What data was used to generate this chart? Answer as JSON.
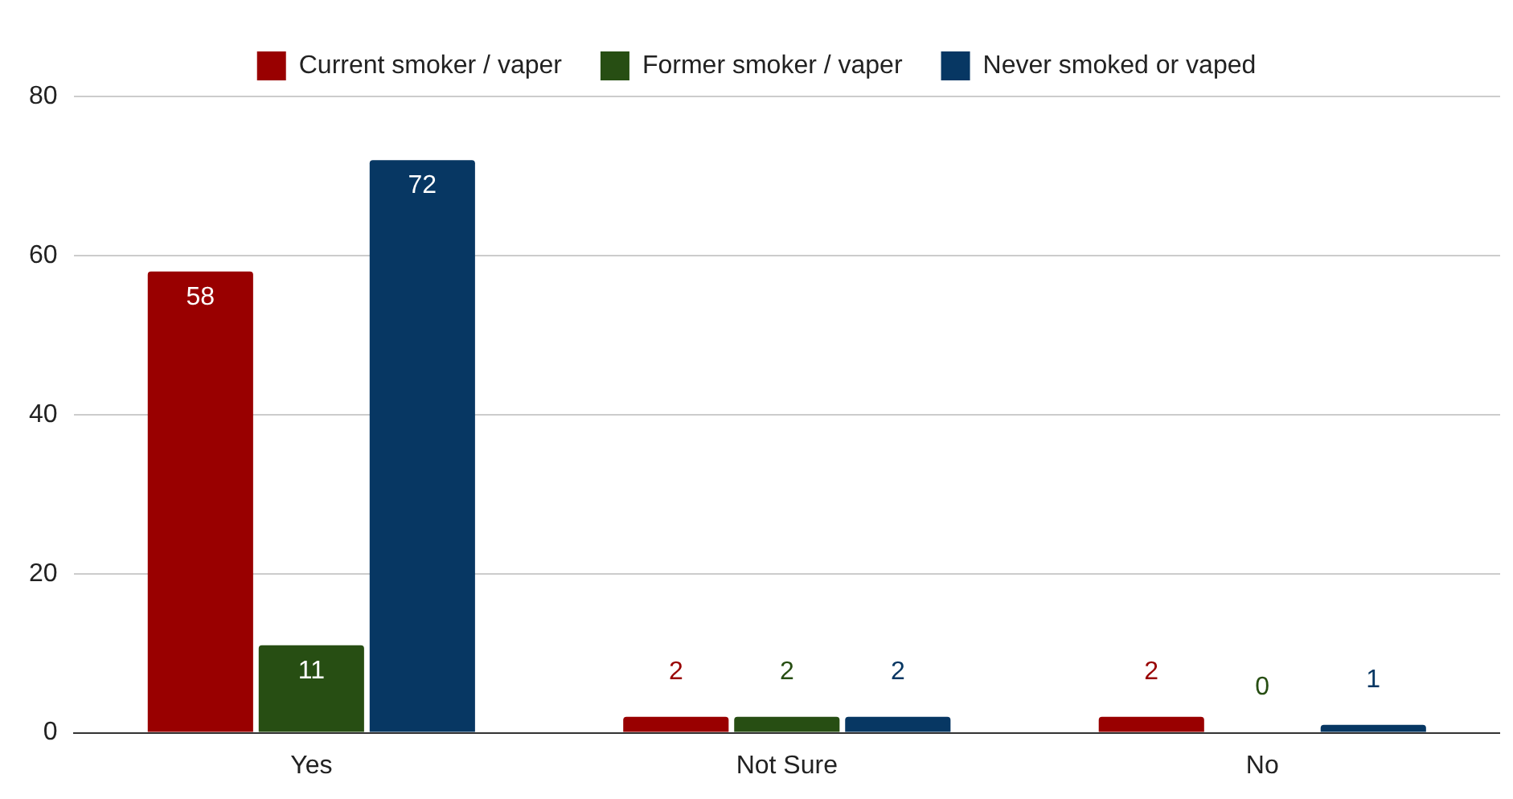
{
  "chart_data": {
    "type": "bar",
    "categories": [
      "Yes",
      "Not Sure",
      "No"
    ],
    "series": [
      {
        "name": "Current smoker / vaper",
        "color": "#990000",
        "values": [
          58,
          2,
          2
        ]
      },
      {
        "name": "Former smoker / vaper",
        "color": "#274e13",
        "values": [
          11,
          2,
          0
        ]
      },
      {
        "name": "Never smoked or vaped",
        "color": "#073763",
        "values": [
          72,
          2,
          1
        ]
      }
    ],
    "ylim": [
      0,
      80
    ],
    "yticks": [
      0,
      20,
      40,
      60,
      80
    ],
    "grid": "y",
    "legend": "top",
    "data_labels": true
  }
}
